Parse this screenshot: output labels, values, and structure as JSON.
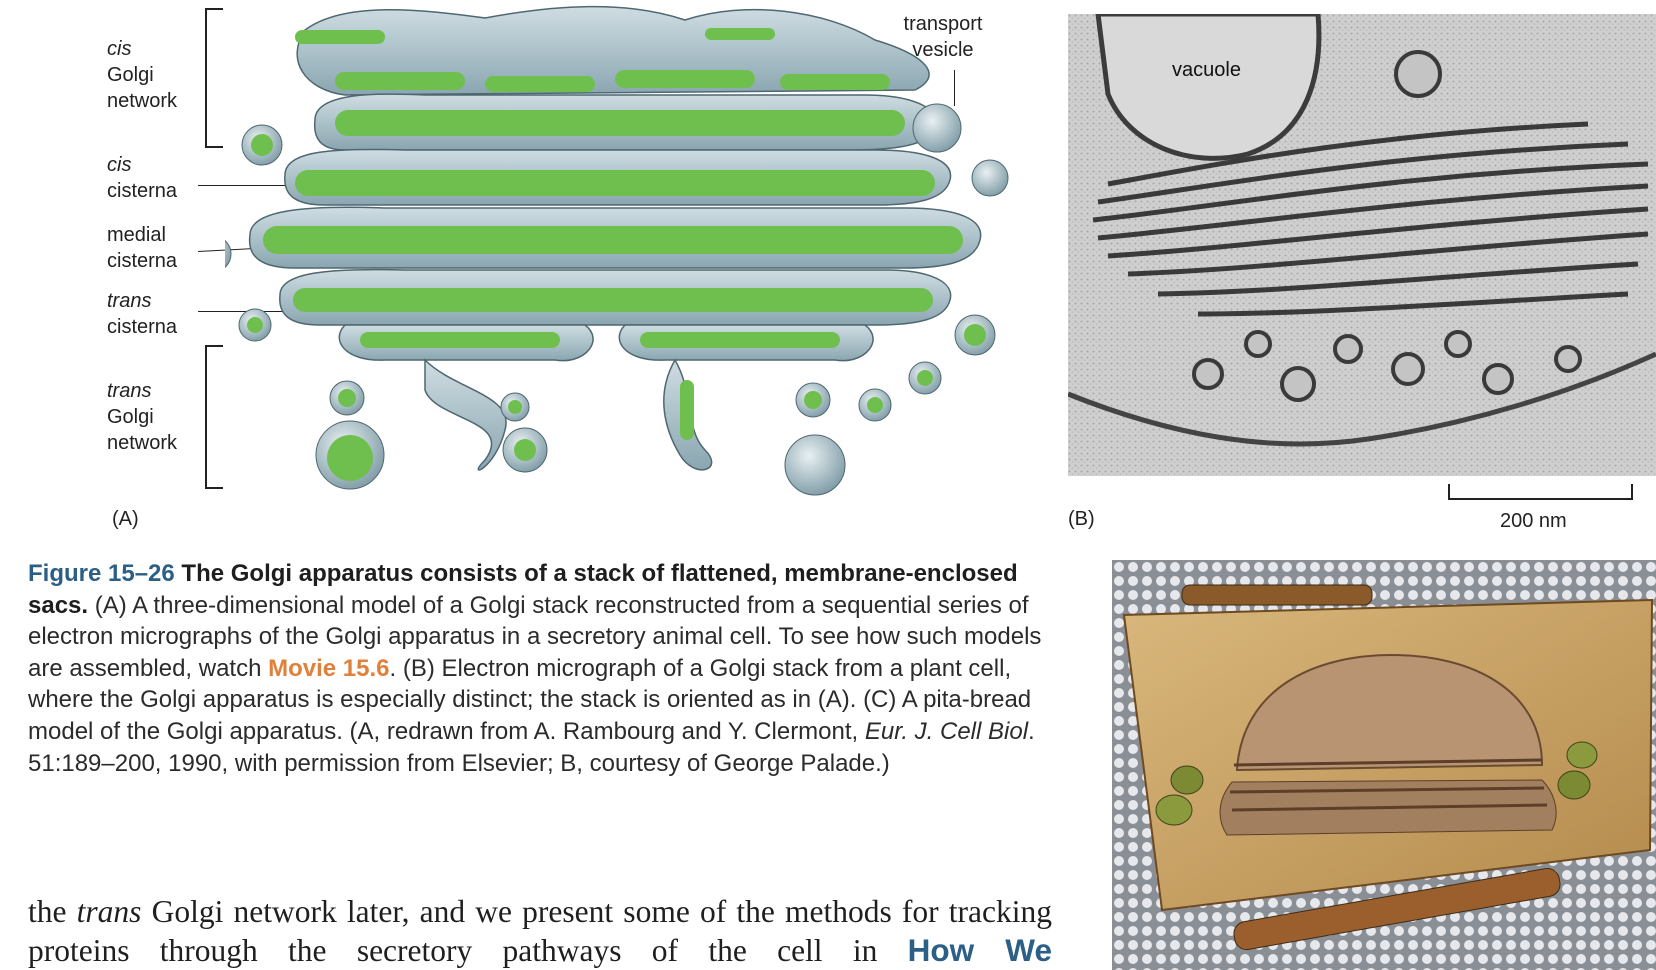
{
  "panel_a": {
    "label": "(A)",
    "labels": {
      "cis_golgi_network": [
        "cis",
        "Golgi",
        "network"
      ],
      "cis_cisterna": [
        "cis",
        "cisterna"
      ],
      "medial_cisterna": [
        "medial",
        "cisterna"
      ],
      "trans_cisterna": [
        "trans",
        "cisterna"
      ],
      "trans_golgi_network": [
        "trans",
        "Golgi",
        "network"
      ],
      "transport_vesicle": [
        "transport",
        "vesicle"
      ]
    },
    "colors": {
      "membrane": "#a9c2cb",
      "lumen": "#6fbf4f",
      "outline": "#4f6770"
    }
  },
  "panel_b": {
    "label": "(B)",
    "vacuole_label": "vacuole",
    "scale_bar_label": "200 nm"
  },
  "caption": {
    "figure_number": "Figure 15–26",
    "title": "The Golgi apparatus consists of a stack of flattened, membrane-enclosed sacs.",
    "text_1": "(A) A three-dimensional model of a Golgi stack reconstructed from a sequential series of electron micrographs of the Golgi apparatus in a secretory animal cell. To see how such models are assembled, watch",
    "movie_link": "Movie 15.6",
    "text_2": ". (B) Electron micrograph of a Golgi stack from a plant cell, where the Golgi apparatus is especially distinct; the stack is oriented as in (A). (C) A pita-bread model of the Golgi apparatus. (A, redrawn from A. Rambourg and Y. Clermont,",
    "journal": "Eur. J. Cell Biol",
    "text_3": ". 51:189–200, 1990, with permission from Elsevier; B, courtesy of George Palade.)"
  },
  "body": {
    "text_before": "the",
    "trans_word": "trans",
    "text_after": "Golgi network later, and we present some of the methods for tracking proteins through the secretory pathways of the cell in",
    "link": "How We"
  }
}
